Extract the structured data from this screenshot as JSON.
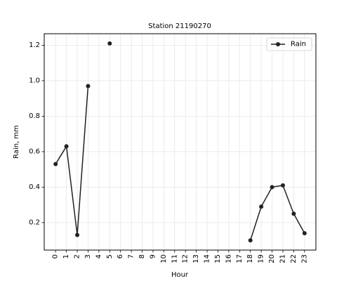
{
  "chart_data": {
    "type": "line",
    "title": "Station 21190270",
    "xlabel": "Hour",
    "ylabel": "Rain, mm",
    "x_ticks": [
      "0",
      "1",
      "2",
      "3",
      "4",
      "5",
      "6",
      "7",
      "8",
      "9",
      "10",
      "11",
      "12",
      "13",
      "14",
      "15",
      "16",
      "17",
      "18",
      "19",
      "20",
      "21",
      "22",
      "23"
    ],
    "y_ticks": [
      "0.2",
      "0.4",
      "0.6",
      "0.8",
      "1.0",
      "1.2"
    ],
    "xlim": [
      -1.05,
      24.05
    ],
    "ylim": [
      0.045,
      1.265
    ],
    "grid": true,
    "legend_position": "top-right",
    "series": [
      {
        "name": "Rain",
        "color": "#222222",
        "x": [
          0,
          1,
          2,
          3,
          4,
          5,
          6,
          7,
          8,
          9,
          10,
          11,
          12,
          13,
          14,
          15,
          16,
          17,
          18,
          19,
          20,
          21,
          22,
          23
        ],
        "y": [
          0.53,
          0.63,
          0.13,
          0.97,
          null,
          1.21,
          null,
          null,
          null,
          null,
          null,
          null,
          null,
          null,
          null,
          null,
          null,
          null,
          0.1,
          0.29,
          0.4,
          0.41,
          0.25,
          0.14
        ]
      }
    ]
  }
}
